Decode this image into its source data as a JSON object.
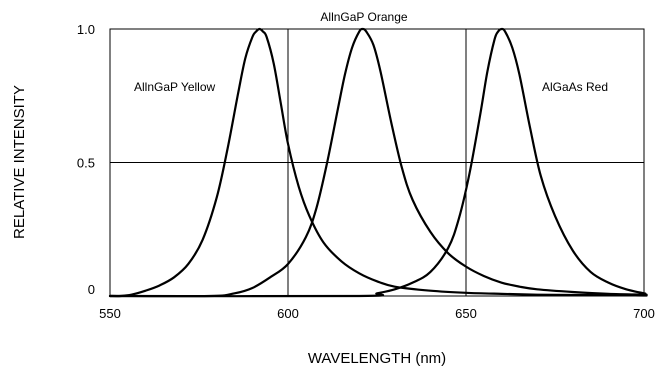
{
  "chart_data": {
    "type": "line",
    "title": "",
    "xlabel": "WAVELENGTH (nm)",
    "ylabel": "RELATIVE INTENSITY",
    "xlim": [
      550,
      700
    ],
    "ylim": [
      0,
      1.0
    ],
    "x_ticks": [
      "550",
      "600",
      "650",
      "700"
    ],
    "y_ticks": [
      "0",
      "0.5",
      "1.0"
    ],
    "grid": true,
    "legend": "none",
    "series": [
      {
        "name": "AllnGaP Yellow",
        "color": "#000000",
        "x": [
          553,
          556,
          560,
          564,
          568,
          572,
          576,
          580,
          583,
          586,
          588,
          590,
          591,
          592,
          593,
          594,
          596,
          598,
          600,
          603,
          606,
          610,
          615,
          620,
          625,
          630,
          640,
          650,
          660,
          670,
          680,
          690,
          700
        ],
        "y": [
          0.0,
          0.005,
          0.02,
          0.04,
          0.07,
          0.12,
          0.21,
          0.37,
          0.55,
          0.76,
          0.89,
          0.97,
          0.99,
          1.0,
          0.99,
          0.97,
          0.87,
          0.72,
          0.57,
          0.41,
          0.3,
          0.2,
          0.13,
          0.085,
          0.055,
          0.035,
          0.02,
          0.012,
          0.008,
          0.005,
          0.004,
          0.003,
          0.002
        ]
      },
      {
        "name": "AllnGaP Orange",
        "color": "#000000",
        "x": [
          578,
          585,
          590,
          595,
          600,
          605,
          608,
          611,
          614,
          616,
          618,
          620,
          621,
          622,
          624,
          626,
          629,
          632,
          635,
          640,
          645,
          650,
          655,
          660,
          665,
          670,
          680,
          690,
          700
        ],
        "y": [
          0.0,
          0.01,
          0.03,
          0.07,
          0.12,
          0.22,
          0.33,
          0.5,
          0.7,
          0.83,
          0.93,
          0.99,
          1.0,
          0.99,
          0.94,
          0.84,
          0.65,
          0.48,
          0.36,
          0.24,
          0.16,
          0.11,
          0.075,
          0.05,
          0.035,
          0.025,
          0.015,
          0.008,
          0.005
        ]
      },
      {
        "name": "AlGaAs Red",
        "color": "#000000",
        "x": [
          620,
          625,
          630,
          635,
          640,
          645,
          648,
          651,
          654,
          656,
          658,
          659,
          660,
          661,
          663,
          665,
          668,
          671,
          675,
          680,
          685,
          690,
          695,
          700
        ],
        "y": [
          0.0,
          0.01,
          0.025,
          0.05,
          0.09,
          0.18,
          0.29,
          0.46,
          0.68,
          0.84,
          0.96,
          0.99,
          1.0,
          0.99,
          0.93,
          0.83,
          0.63,
          0.45,
          0.3,
          0.17,
          0.09,
          0.05,
          0.025,
          0.01
        ]
      }
    ],
    "annotations": [
      "AllnGaP Yellow",
      "AllnGaP Orange",
      "AlGaAs Red"
    ]
  }
}
